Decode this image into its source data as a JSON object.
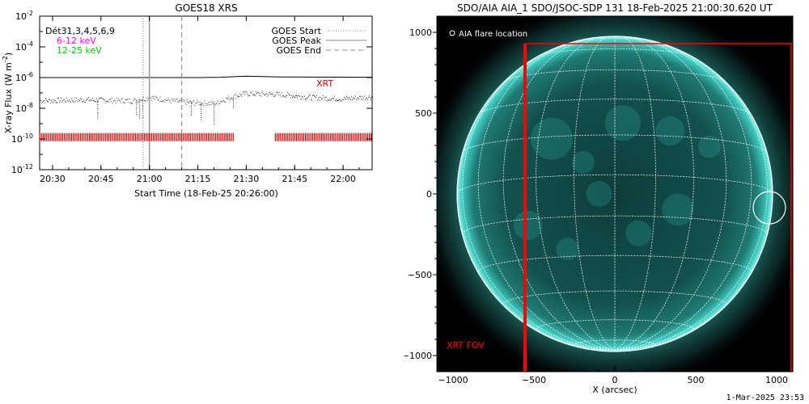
{
  "goes_panel": {
    "title": "GOES18 XRS",
    "ylabel": "X-ray Flux (W m",
    "ylabel_sup": "-2",
    "ylabel_close": ")",
    "xlabel": "Start Time (18-Feb-25 20:26:00)",
    "date_line": "Dét31,3,4,5,6,9",
    "band_labels": [
      {
        "text": "6-12 keV",
        "color": "#ff00ff"
      },
      {
        "text": "12-25 keV",
        "color": "#00cc00"
      }
    ],
    "legend": [
      {
        "label": "GOES Start",
        "style": "dotted"
      },
      {
        "label": "GOES Peak",
        "style": "solid"
      },
      {
        "label": "GOES End",
        "style": "dashed"
      }
    ],
    "xrt_label": "XRT",
    "xrt_color": "#dd0000"
  },
  "aia_panel": {
    "title": "SDO/AIA AIA_1 SDO/JSOC-SDP 131 18-Feb-2025 21:00:30.620 UT",
    "legend_text": "AIA flare location",
    "fov_label": "XRT FOV",
    "xlabel": "X (arcsec)",
    "fov_color": "#ff0000",
    "disk_color": "#2aa9a2"
  },
  "footer": {
    "timestamp": "1-Mar-2025 23:53"
  },
  "chart_data": [
    {
      "type": "line",
      "title": "GOES18 XRS",
      "xlabel": "Start Time (18-Feb-25 20:26:00)",
      "ylabel": "X-ray Flux (W m^-2)",
      "x_unit": "HH:MM UT",
      "xlim": [
        "20:26",
        "22:09"
      ],
      "ylim": [
        1e-12,
        0.01
      ],
      "y_scale": "log",
      "x_ticks": [
        "20:30",
        "20:45",
        "21:00",
        "21:15",
        "21:30",
        "21:45",
        "22:00"
      ],
      "y_ticks": [
        "10^-12",
        "10^-10",
        "10^-8",
        "10^-6",
        "10^-4",
        "10^-2"
      ],
      "series": [
        {
          "name": "",
          "color": "#000000",
          "x": [
            "20:26",
            "20:45",
            "21:00",
            "21:15",
            "21:22",
            "21:30",
            "21:40",
            "22:09"
          ],
          "y": [
            1e-06,
            1e-06,
            1e-06,
            1e-06,
            1.05e-06,
            1.25e-06,
            1.1e-06,
            1.05e-06
          ]
        },
        {
          "name": "",
          "color": "#000000",
          "style": "points",
          "x": [
            "20:26",
            "20:40",
            "20:55",
            "21:00",
            "21:10",
            "21:20",
            "21:25",
            "21:30",
            "21:40",
            "21:50",
            "22:00",
            "22:09"
          ],
          "y": [
            3e-08,
            3.5e-08,
            3e-08,
            5e-08,
            2.5e-08,
            2e-08,
            5e-08,
            9e-08,
            8e-08,
            5e-08,
            4e-08,
            5.5e-08
          ]
        }
      ],
      "vertical_markers": [
        {
          "label": "GOES Start",
          "x": "20:58",
          "style": "dotted"
        },
        {
          "label": "GOES Peak",
          "x": "21:00",
          "style": "solid"
        },
        {
          "label": "GOES End",
          "x": "21:10",
          "style": "dashed"
        }
      ],
      "xrt_coverage": [
        [
          "20:26",
          "21:26"
        ],
        [
          "21:39",
          "22:09"
        ]
      ]
    },
    {
      "type": "scatter",
      "title": "SDO/AIA AIA_1 SDO/JSOC-SDP 131 18-Feb-2025 21:00:30.620 UT",
      "xlabel": "X (arcsec)",
      "ylabel": "",
      "xlim": [
        -1100,
        1100
      ],
      "ylim": [
        -1100,
        1100
      ],
      "x_ticks": [
        -1000,
        -500,
        0,
        500,
        1000
      ],
      "y_ticks": [
        -1000,
        -500,
        0,
        500,
        1000
      ],
      "solar_radius_arcsec": 975,
      "flare_location": {
        "x": 955,
        "y": -85,
        "radius": 100
      },
      "xrt_fov": {
        "x": [
          -555,
          1090
        ],
        "y": [
          -1105,
          930
        ]
      }
    }
  ]
}
